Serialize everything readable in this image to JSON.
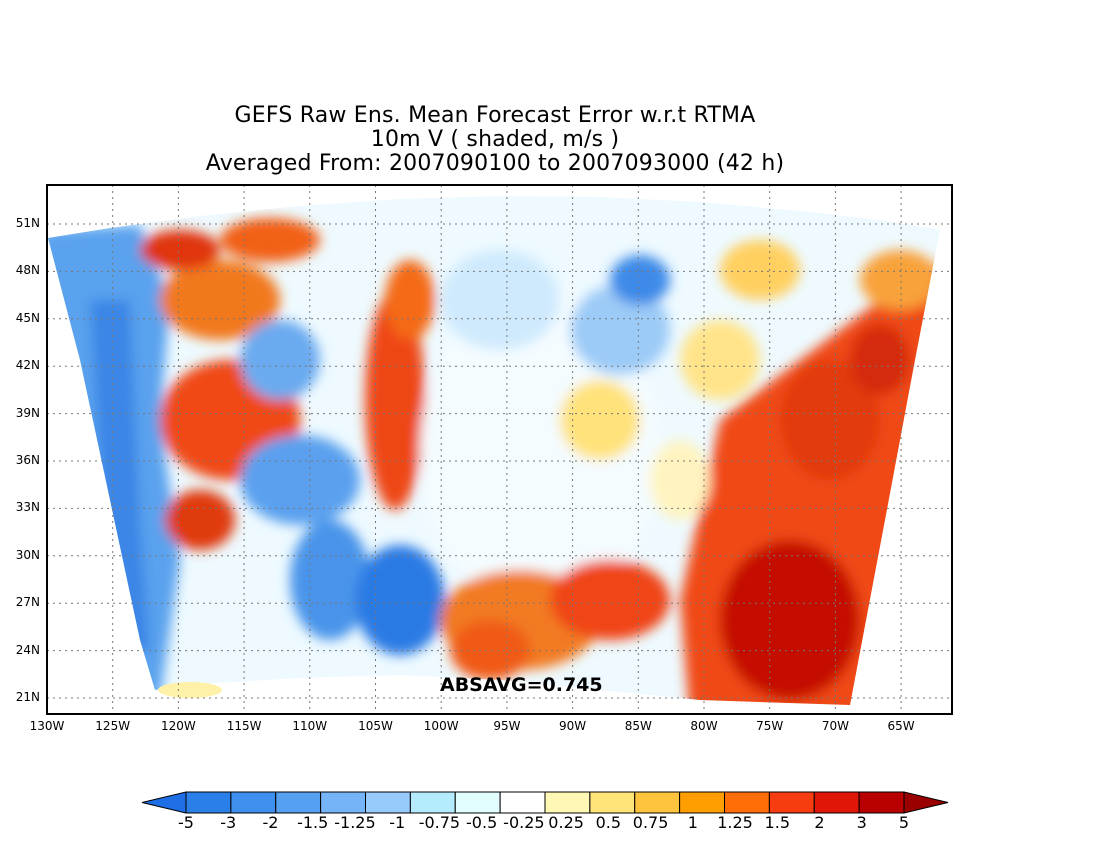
{
  "title": {
    "line1": "GEFS Raw Ens. Mean Forecast Error w.r.t RTMA",
    "line2": "10m V ( shaded, m/s )",
    "line3": "Averaged From: 2007090100 to 2007093000 (42 h)"
  },
  "absavg_label": "ABSAVG=0.745",
  "map": {
    "lat_labels": [
      "51N",
      "48N",
      "45N",
      "42N",
      "39N",
      "36N",
      "33N",
      "30N",
      "27N",
      "24N",
      "21N"
    ],
    "lon_labels": [
      "130W",
      "125W",
      "120W",
      "115W",
      "110W",
      "105W",
      "100W",
      "95W",
      "90W",
      "85W",
      "80W",
      "75W",
      "70W",
      "65W"
    ],
    "gridlines": "dotted"
  },
  "colorbar": {
    "levels": [
      "-5",
      "-3",
      "-2",
      "-1.5",
      "-1.25",
      "-1",
      "-0.75",
      "-0.5",
      "-0.25",
      "0.25",
      "0.5",
      "0.75",
      "1",
      "1.25",
      "1.5",
      "2",
      "3",
      "5"
    ],
    "colors": [
      "#1e6ee6",
      "#2b7fe8",
      "#3f90ee",
      "#56a0f2",
      "#75b4f7",
      "#96cbfb",
      "#b4ebfd",
      "#e2fdfe",
      "#ffffff",
      "#fff8b4",
      "#ffe47a",
      "#ffc43e",
      "#ff9e00",
      "#ff6e08",
      "#f63c10",
      "#e01608",
      "#b80000",
      "#9a0000"
    ]
  },
  "colors": {
    "neg_strong": "#2f7fe6",
    "neg_light": "#a8d4fb",
    "neutral": "#ffffff",
    "pos_light": "#ffd66a",
    "pos_strong": "#e8360c",
    "pos_max": "#b80000"
  }
}
